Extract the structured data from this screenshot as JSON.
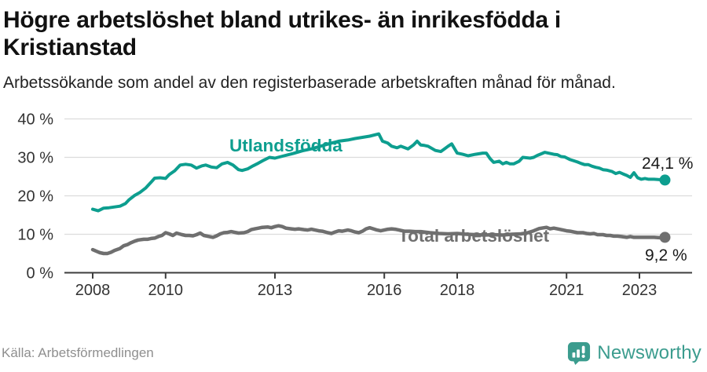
{
  "header": {
    "title": "Högre arbetslöshet bland utrikes- än inrikesfödda i Kristianstad",
    "subtitle": "Arbetssökande som andel av den registerbaserade arbetskraften månad för månad."
  },
  "footer": {
    "source": "Källa: Arbetsförmedlingen",
    "brand": "Newsworthy"
  },
  "colors": {
    "foreign_born_line": "#0d9e8f",
    "total_line": "#6f6f6f",
    "grid": "#dcdcdc",
    "axis": "#3d3d3d",
    "axis_text": "#333333",
    "value_label_text": "#1a1a1a",
    "source_text": "#8f8f8f",
    "brand_teal": "#3b9c8e"
  },
  "chart_data": {
    "type": "line",
    "title": "Högre arbetslöshet bland utrikes- än inrikesfödda i Kristianstad",
    "xlabel": "",
    "ylabel": "",
    "grid": "horizontal",
    "x_axis": {
      "unit": "year",
      "range": [
        2008,
        2023.75
      ],
      "tick_values": [
        2008,
        2010,
        2013,
        2016,
        2018,
        2021,
        2023
      ],
      "tick_labels": [
        "2008",
        "2010",
        "2013",
        "2016",
        "2018",
        "2021",
        "2023"
      ]
    },
    "y_axis": {
      "unit": "%",
      "range": [
        0,
        42
      ],
      "tick_values": [
        0,
        10,
        20,
        30,
        40
      ],
      "tick_labels": [
        "0 %",
        "10 %",
        "20 %",
        "30 %",
        "40 %"
      ]
    },
    "legend_position": "inline-labels",
    "series": [
      {
        "name": "Utlandsfödda",
        "color": "#0d9e8f",
        "end_label": "24,1 %",
        "end_value": 24.1,
        "points": [
          [
            2008.0,
            16.5
          ],
          [
            2008.15,
            16.1
          ],
          [
            2008.3,
            16.8
          ],
          [
            2008.45,
            16.9
          ],
          [
            2008.6,
            17.1
          ],
          [
            2008.75,
            17.3
          ],
          [
            2008.9,
            18.0
          ],
          [
            2009.0,
            19.0
          ],
          [
            2009.15,
            20.1
          ],
          [
            2009.3,
            20.9
          ],
          [
            2009.45,
            22.0
          ],
          [
            2009.6,
            23.5
          ],
          [
            2009.7,
            24.6
          ],
          [
            2009.85,
            24.7
          ],
          [
            2010.0,
            24.5
          ],
          [
            2010.1,
            25.5
          ],
          [
            2010.25,
            26.5
          ],
          [
            2010.4,
            28.0
          ],
          [
            2010.55,
            28.2
          ],
          [
            2010.7,
            28.0
          ],
          [
            2010.85,
            27.2
          ],
          [
            2011.0,
            27.8
          ],
          [
            2011.1,
            28.0
          ],
          [
            2011.25,
            27.5
          ],
          [
            2011.4,
            27.3
          ],
          [
            2011.55,
            28.3
          ],
          [
            2011.7,
            28.7
          ],
          [
            2011.85,
            28.0
          ],
          [
            2012.0,
            26.8
          ],
          [
            2012.1,
            26.6
          ],
          [
            2012.25,
            27.0
          ],
          [
            2012.4,
            27.8
          ],
          [
            2012.55,
            28.5
          ],
          [
            2012.7,
            29.3
          ],
          [
            2012.85,
            30.0
          ],
          [
            2013.0,
            29.8
          ],
          [
            2013.25,
            30.4
          ],
          [
            2013.5,
            31.0
          ],
          [
            2013.75,
            31.7
          ],
          [
            2014.0,
            32.2
          ],
          [
            2014.25,
            32.9
          ],
          [
            2014.5,
            33.6
          ],
          [
            2014.75,
            34.2
          ],
          [
            2015.0,
            34.5
          ],
          [
            2015.2,
            34.9
          ],
          [
            2015.4,
            35.2
          ],
          [
            2015.6,
            35.5
          ],
          [
            2015.85,
            36.1
          ],
          [
            2015.95,
            34.2
          ],
          [
            2016.1,
            33.7
          ],
          [
            2016.2,
            32.9
          ],
          [
            2016.35,
            32.5
          ],
          [
            2016.45,
            32.9
          ],
          [
            2016.65,
            32.2
          ],
          [
            2016.8,
            33.2
          ],
          [
            2016.9,
            34.2
          ],
          [
            2017.0,
            33.2
          ],
          [
            2017.1,
            33.1
          ],
          [
            2017.2,
            32.9
          ],
          [
            2017.4,
            31.8
          ],
          [
            2017.55,
            31.5
          ],
          [
            2017.65,
            32.2
          ],
          [
            2017.75,
            32.9
          ],
          [
            2017.85,
            33.5
          ],
          [
            2018.0,
            31.1
          ],
          [
            2018.15,
            30.8
          ],
          [
            2018.3,
            30.4
          ],
          [
            2018.5,
            30.8
          ],
          [
            2018.7,
            31.1
          ],
          [
            2018.8,
            31.1
          ],
          [
            2018.9,
            29.7
          ],
          [
            2019.0,
            28.7
          ],
          [
            2019.15,
            29.0
          ],
          [
            2019.25,
            28.3
          ],
          [
            2019.35,
            28.7
          ],
          [
            2019.45,
            28.3
          ],
          [
            2019.55,
            28.3
          ],
          [
            2019.7,
            29.0
          ],
          [
            2019.8,
            30.0
          ],
          [
            2019.9,
            29.9
          ],
          [
            2020.0,
            29.8
          ],
          [
            2020.1,
            30.0
          ],
          [
            2020.2,
            30.5
          ],
          [
            2020.3,
            30.9
          ],
          [
            2020.4,
            31.3
          ],
          [
            2020.5,
            31.1
          ],
          [
            2020.65,
            30.8
          ],
          [
            2020.75,
            30.7
          ],
          [
            2020.85,
            30.2
          ],
          [
            2020.95,
            30.1
          ],
          [
            2021.1,
            29.4
          ],
          [
            2021.2,
            29.1
          ],
          [
            2021.3,
            28.8
          ],
          [
            2021.4,
            28.4
          ],
          [
            2021.5,
            28.1
          ],
          [
            2021.6,
            28.1
          ],
          [
            2021.7,
            27.7
          ],
          [
            2021.8,
            27.4
          ],
          [
            2021.9,
            27.2
          ],
          [
            2022.0,
            26.8
          ],
          [
            2022.1,
            26.7
          ],
          [
            2022.25,
            26.3
          ],
          [
            2022.35,
            25.8
          ],
          [
            2022.45,
            26.1
          ],
          [
            2022.55,
            25.7
          ],
          [
            2022.65,
            25.3
          ],
          [
            2022.75,
            24.8
          ],
          [
            2022.85,
            26.0
          ],
          [
            2022.95,
            24.7
          ],
          [
            2023.05,
            24.3
          ],
          [
            2023.15,
            24.5
          ],
          [
            2023.25,
            24.3
          ],
          [
            2023.4,
            24.3
          ],
          [
            2023.55,
            24.2
          ],
          [
            2023.7,
            24.1
          ]
        ]
      },
      {
        "name": "Total arbetslöshet",
        "color": "#6f6f6f",
        "end_label": "9,2 %",
        "end_value": 9.2,
        "points": [
          [
            2008.0,
            6.0
          ],
          [
            2008.1,
            5.6
          ],
          [
            2008.2,
            5.2
          ],
          [
            2008.3,
            5.0
          ],
          [
            2008.4,
            5.0
          ],
          [
            2008.5,
            5.3
          ],
          [
            2008.6,
            5.8
          ],
          [
            2008.75,
            6.3
          ],
          [
            2008.85,
            7.0
          ],
          [
            2008.95,
            7.3
          ],
          [
            2009.05,
            7.8
          ],
          [
            2009.15,
            8.2
          ],
          [
            2009.25,
            8.5
          ],
          [
            2009.4,
            8.7
          ],
          [
            2009.5,
            8.7
          ],
          [
            2009.6,
            8.9
          ],
          [
            2009.7,
            9.0
          ],
          [
            2009.8,
            9.4
          ],
          [
            2009.9,
            9.7
          ],
          [
            2010.0,
            10.4
          ],
          [
            2010.1,
            10.1
          ],
          [
            2010.2,
            9.7
          ],
          [
            2010.3,
            10.3
          ],
          [
            2010.45,
            9.9
          ],
          [
            2010.55,
            9.7
          ],
          [
            2010.65,
            9.7
          ],
          [
            2010.75,
            9.6
          ],
          [
            2010.85,
            9.9
          ],
          [
            2010.95,
            10.3
          ],
          [
            2011.05,
            9.7
          ],
          [
            2011.2,
            9.4
          ],
          [
            2011.3,
            9.2
          ],
          [
            2011.4,
            9.6
          ],
          [
            2011.5,
            10.1
          ],
          [
            2011.6,
            10.4
          ],
          [
            2011.7,
            10.5
          ],
          [
            2011.8,
            10.7
          ],
          [
            2011.9,
            10.5
          ],
          [
            2012.0,
            10.3
          ],
          [
            2012.15,
            10.4
          ],
          [
            2012.25,
            10.7
          ],
          [
            2012.35,
            11.2
          ],
          [
            2012.45,
            11.4
          ],
          [
            2012.55,
            11.6
          ],
          [
            2012.65,
            11.8
          ],
          [
            2012.8,
            11.9
          ],
          [
            2012.9,
            11.7
          ],
          [
            2013.0,
            12.0
          ],
          [
            2013.1,
            12.2
          ],
          [
            2013.2,
            12.0
          ],
          [
            2013.3,
            11.6
          ],
          [
            2013.45,
            11.4
          ],
          [
            2013.55,
            11.3
          ],
          [
            2013.65,
            11.4
          ],
          [
            2013.8,
            11.2
          ],
          [
            2013.9,
            11.1
          ],
          [
            2014.0,
            11.3
          ],
          [
            2014.1,
            11.1
          ],
          [
            2014.2,
            10.9
          ],
          [
            2014.3,
            10.8
          ],
          [
            2014.45,
            10.4
          ],
          [
            2014.55,
            10.2
          ],
          [
            2014.65,
            10.6
          ],
          [
            2014.75,
            10.9
          ],
          [
            2014.85,
            10.8
          ],
          [
            2015.0,
            11.1
          ],
          [
            2015.1,
            10.9
          ],
          [
            2015.2,
            10.6
          ],
          [
            2015.3,
            10.4
          ],
          [
            2015.4,
            10.8
          ],
          [
            2015.5,
            11.4
          ],
          [
            2015.6,
            11.7
          ],
          [
            2015.7,
            11.4
          ],
          [
            2015.8,
            11.1
          ],
          [
            2015.9,
            10.9
          ],
          [
            2016.0,
            11.1
          ],
          [
            2016.1,
            11.3
          ],
          [
            2016.2,
            11.4
          ],
          [
            2016.3,
            11.3
          ],
          [
            2016.4,
            11.1
          ],
          [
            2016.55,
            10.8
          ],
          [
            2016.7,
            10.8
          ],
          [
            2016.85,
            10.7
          ],
          [
            2017.0,
            10.7
          ],
          [
            2017.25,
            10.4
          ],
          [
            2017.5,
            10.2
          ],
          [
            2017.75,
            10.1
          ],
          [
            2018.0,
            10.2
          ],
          [
            2018.25,
            10.0
          ],
          [
            2018.5,
            9.9
          ],
          [
            2018.75,
            9.8
          ],
          [
            2019.0,
            9.9
          ],
          [
            2019.25,
            9.8
          ],
          [
            2019.5,
            10.0
          ],
          [
            2019.75,
            10.1
          ],
          [
            2019.9,
            10.3
          ],
          [
            2020.1,
            10.9
          ],
          [
            2020.25,
            11.5
          ],
          [
            2020.45,
            11.8
          ],
          [
            2020.55,
            11.4
          ],
          [
            2020.65,
            11.6
          ],
          [
            2020.8,
            11.3
          ],
          [
            2020.9,
            11.1
          ],
          [
            2021.0,
            10.9
          ],
          [
            2021.1,
            10.8
          ],
          [
            2021.2,
            10.6
          ],
          [
            2021.3,
            10.4
          ],
          [
            2021.45,
            10.4
          ],
          [
            2021.55,
            10.2
          ],
          [
            2021.65,
            10.1
          ],
          [
            2021.75,
            10.2
          ],
          [
            2021.85,
            9.9
          ],
          [
            2022.0,
            9.9
          ],
          [
            2022.1,
            9.7
          ],
          [
            2022.2,
            9.7
          ],
          [
            2022.3,
            9.5
          ],
          [
            2022.4,
            9.5
          ],
          [
            2022.5,
            9.4
          ],
          [
            2022.65,
            9.2
          ],
          [
            2022.75,
            9.4
          ],
          [
            2022.85,
            9.2
          ],
          [
            2022.95,
            9.2
          ],
          [
            2023.1,
            9.2
          ],
          [
            2023.25,
            9.2
          ],
          [
            2023.4,
            9.2
          ],
          [
            2023.55,
            9.1
          ],
          [
            2023.7,
            9.2
          ]
        ]
      }
    ]
  }
}
